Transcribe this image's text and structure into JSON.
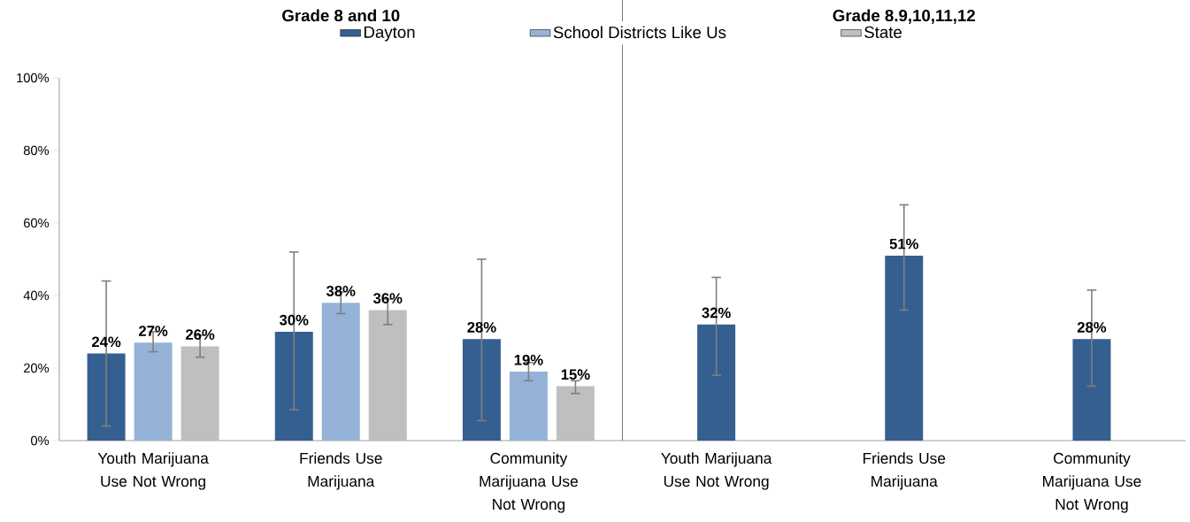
{
  "chart_data": {
    "type": "bar",
    "categories": [
      "Youth Marijuana Use Not Wrong",
      "Friends Use Marijuana",
      "Community Marijuana Use Not Wrong",
      "Youth Marijuana Use Not Wrong",
      "Friends Use Marijuana",
      "Community Marijuana Use Not Wrong"
    ],
    "series": [
      {
        "name": "Dayton",
        "color": "#365f91",
        "values": [
          24,
          30,
          28,
          32,
          51,
          28
        ],
        "value_labels": [
          "24%",
          "30%",
          "28%",
          "32%",
          "51%",
          "28%"
        ],
        "errors": [
          [
            4,
            44
          ],
          [
            8.5,
            52
          ],
          [
            5.5,
            50
          ],
          [
            18,
            45
          ],
          [
            36,
            65
          ],
          [
            15,
            41.5
          ]
        ]
      },
      {
        "name": "School Districts Like Us",
        "color": "#95b3d7",
        "values": [
          27,
          38,
          19,
          null,
          null,
          null
        ],
        "value_labels": [
          "27%",
          "38%",
          "19%",
          null,
          null,
          null
        ],
        "errors": [
          [
            24.5,
            30
          ],
          [
            35,
            41
          ],
          [
            16.5,
            21.5
          ],
          null,
          null,
          null
        ]
      },
      {
        "name": "State",
        "color": "#bfbfbf",
        "values": [
          26,
          36,
          15,
          null,
          null,
          null
        ],
        "value_labels": [
          "26%",
          "36%",
          "15%",
          null,
          null,
          null
        ],
        "errors": [
          [
            23,
            29
          ],
          [
            32,
            39
          ],
          [
            13,
            16.5
          ],
          null,
          null,
          null
        ]
      }
    ],
    "ylim": [
      0,
      100
    ],
    "yticks": [
      {
        "value": 0,
        "label": "0%"
      },
      {
        "value": 20,
        "label": "20%"
      },
      {
        "value": 40,
        "label": "40%"
      },
      {
        "value": 60,
        "label": "60%"
      },
      {
        "value": 80,
        "label": "80%"
      },
      {
        "value": 100,
        "label": "100%"
      }
    ],
    "annotations": [
      "Grade 8 and 10",
      "Grade 8,9,10,11,12"
    ],
    "legend": "top"
  }
}
